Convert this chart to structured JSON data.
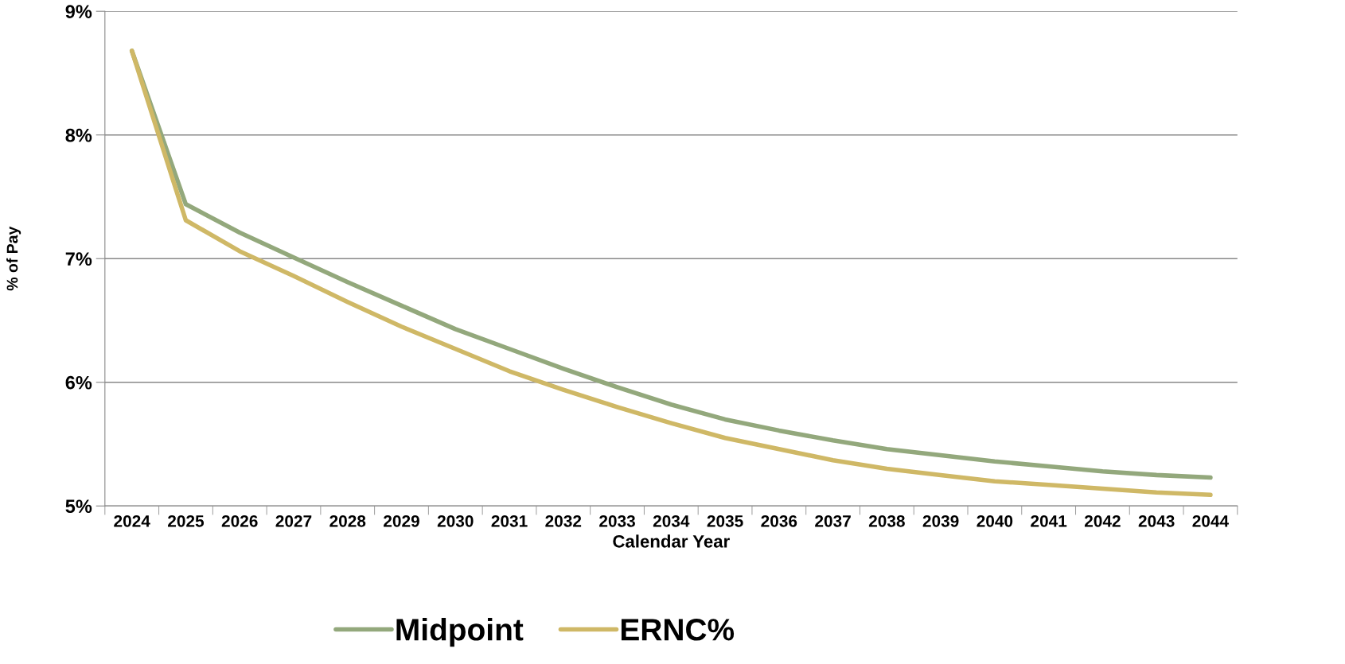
{
  "chart_data": {
    "type": "line",
    "xlabel": "Calendar Year",
    "ylabel": "% of Pay",
    "categories": [
      "2024",
      "2025",
      "2026",
      "2027",
      "2028",
      "2029",
      "2030",
      "2031",
      "2032",
      "2033",
      "2034",
      "2035",
      "2036",
      "2037",
      "2038",
      "2039",
      "2040",
      "2041",
      "2042",
      "2043",
      "2044"
    ],
    "series": [
      {
        "name": "Midpoint",
        "color": "#93a87c",
        "values": [
          8.68,
          7.44,
          7.21,
          7.01,
          6.81,
          6.62,
          6.43,
          6.27,
          6.11,
          5.96,
          5.82,
          5.7,
          5.61,
          5.53,
          5.46,
          5.41,
          5.36,
          5.32,
          5.28,
          5.25,
          5.23
        ]
      },
      {
        "name": "ERNC%",
        "color": "#cfb866",
        "values": [
          8.68,
          7.31,
          7.06,
          6.86,
          6.65,
          6.45,
          6.27,
          6.09,
          5.94,
          5.8,
          5.67,
          5.55,
          5.46,
          5.37,
          5.3,
          5.25,
          5.2,
          5.17,
          5.14,
          5.11,
          5.09
        ]
      }
    ],
    "ylim": [
      5,
      9
    ],
    "yticks": [
      {
        "value": 5,
        "label": "5%"
      },
      {
        "value": 6,
        "label": "6%"
      },
      {
        "value": 7,
        "label": "7%"
      },
      {
        "value": 8,
        "label": "8%"
      },
      {
        "value": 9,
        "label": "9%"
      }
    ],
    "grid": "y",
    "legend": "bottom",
    "marker": "none",
    "line_style": "solid"
  }
}
